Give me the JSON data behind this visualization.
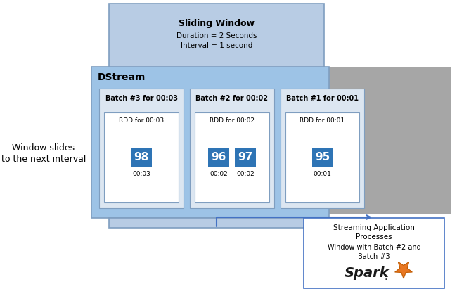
{
  "title": "Sliding Window",
  "subtitle_line1": "Duration = 2 Seconds",
  "subtitle_line2": "Interval = 1 second",
  "left_label_line1": "Window slides",
  "left_label_line2": "to the next interval",
  "dstream_label": "DStream",
  "batches": [
    {
      "title": "Batch #3 for 00:03",
      "rdd_label": "RDD for 00:03",
      "values": [
        "98"
      ],
      "timestamps": [
        "00:03"
      ]
    },
    {
      "title": "Batch #2 for 00:02",
      "rdd_label": "RDD for 00:02",
      "values": [
        "96",
        "97"
      ],
      "timestamps": [
        "00:02",
        "00:02"
      ]
    },
    {
      "title": "Batch #1 for 00:01",
      "rdd_label": "RDD for 00:01",
      "values": [
        "95"
      ],
      "timestamps": [
        "00:01"
      ]
    }
  ],
  "app_box_line1": "Streaming Application",
  "app_box_line2": "Processes",
  "app_box_line3": "Window with Batch #2 and",
  "app_box_line4": "Batch #3",
  "spark_text": "Spark",
  "color_sliding_window_bg": "#b8cce4",
  "color_dstream_bg": "#9dc3e6",
  "color_gray_bg": "#a6a6a6",
  "color_batch_bg": "#dce6f1",
  "color_value_blue": "#2e74b5",
  "color_arrow": "#4472c4",
  "color_app_box_border": "#4472c4",
  "color_sw_border": "#7f9ec0",
  "color_ds_border": "#7f9ec0",
  "color_batch_border": "#7f9ec0",
  "color_rdd_border": "#7f9ec0"
}
